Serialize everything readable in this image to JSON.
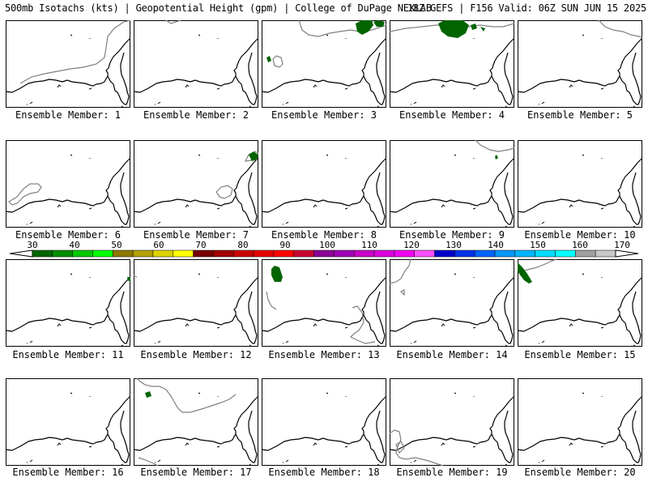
{
  "header": {
    "left": "500mb Isotachs (kts) | Geopotential Height (gpm) | College of DuPage NEXLAB",
    "right": "18Z GEFS | F156 Valid: 06Z SUN JUN 15 2025"
  },
  "members": [
    {
      "label": "Ensemble Member: 1"
    },
    {
      "label": "Ensemble Member: 2"
    },
    {
      "label": "Ensemble Member: 3"
    },
    {
      "label": "Ensemble Member: 4"
    },
    {
      "label": "Ensemble Member: 5"
    },
    {
      "label": "Ensemble Member: 6"
    },
    {
      "label": "Ensemble Member: 7"
    },
    {
      "label": "Ensemble Member: 8"
    },
    {
      "label": "Ensemble Member: 9"
    },
    {
      "label": "Ensemble Member: 10"
    },
    {
      "label": "Ensemble Member: 11"
    },
    {
      "label": "Ensemble Member: 12"
    },
    {
      "label": "Ensemble Member: 13"
    },
    {
      "label": "Ensemble Member: 14"
    },
    {
      "label": "Ensemble Member: 15"
    },
    {
      "label": "Ensemble Member: 16"
    },
    {
      "label": "Ensemble Member: 17"
    },
    {
      "label": "Ensemble Member: 18"
    },
    {
      "label": "Ensemble Member: 19"
    },
    {
      "label": "Ensemble Member: 20"
    }
  ],
  "colorbar": {
    "labels": [
      "30",
      "40",
      "50",
      "60",
      "70",
      "80",
      "90",
      "100",
      "110",
      "120",
      "130",
      "140",
      "150",
      "160",
      "170"
    ],
    "colors": [
      "#006400",
      "#008c00",
      "#00c800",
      "#00ff00",
      "#8c7800",
      "#b4a000",
      "#dcd200",
      "#ffff00",
      "#780000",
      "#a00000",
      "#c80000",
      "#e60000",
      "#ff0000",
      "#c80032",
      "#8c0096",
      "#a000b4",
      "#c800c8",
      "#dc00dc",
      "#f000f0",
      "#ff50ff",
      "#0000c8",
      "#0032e6",
      "#0064ff",
      "#0096ff",
      "#00b4ff",
      "#00dcff",
      "#00ffff",
      "#a0a0a0",
      "#c8c8c8"
    ]
  },
  "colors": {
    "coastline": "#000000",
    "height_contour": "#808080",
    "isotach_30kt": "#006400"
  }
}
